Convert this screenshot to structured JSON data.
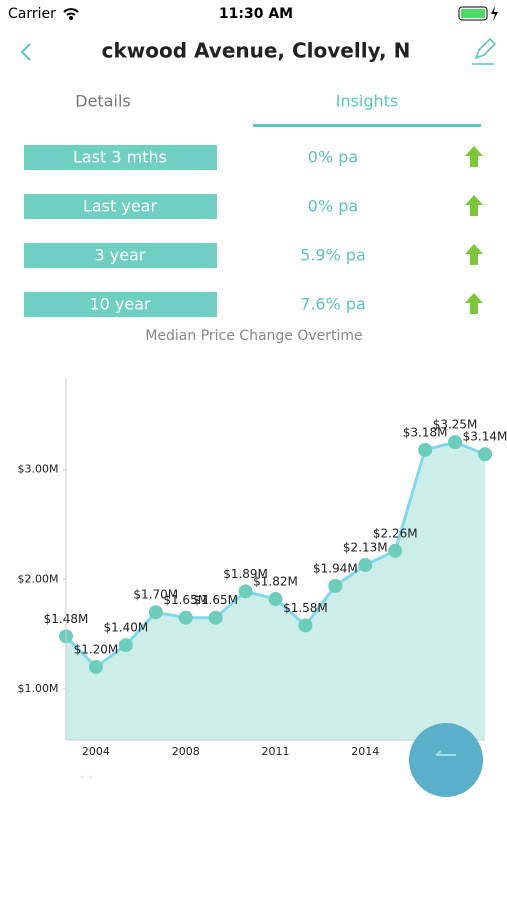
{
  "status_bar": {
    "carrier": "Carrier",
    "time": "11:30 AM"
  },
  "header": {
    "title": "ckwood Avenue, Clovelly, N"
  },
  "tabs": [
    "Details",
    "Insights"
  ],
  "stats": {
    "rows": [
      {
        "period": "Last 3 mths",
        "change": "0% pa"
      },
      {
        "period": "Last year",
        "change": "0% pa"
      },
      {
        "period": "3 year",
        "change": "5.9% pa"
      },
      {
        "period": "10 year",
        "change": "7.6% pa"
      }
    ]
  },
  "chart_data": {
    "type": "line",
    "title": "Median Price Change Overtime",
    "categories": [
      null,
      "2004",
      null,
      null,
      "2008",
      null,
      null,
      "2011",
      null,
      null,
      "2014",
      null,
      null,
      null,
      null
    ],
    "values": [
      1480000,
      1200000,
      1400000,
      1700000,
      1650000,
      1650000,
      1890000,
      1820000,
      1580000,
      1940000,
      2130000,
      2260000,
      3180000,
      3250000,
      3140000
    ],
    "value_labels": [
      "$1.48M",
      "$1.20M",
      "$1.40M",
      "$1.70M",
      "$1.65M",
      "$1.65M",
      "$1.89M",
      "$1.82M",
      "$1.58M",
      "$1.94M",
      "$2.13M",
      "$2.26M",
      "$3.18M",
      "$3.25M",
      "$3.14M"
    ],
    "color": "#7fd8ee",
    "ylim": [
      535000,
      3835000
    ],
    "yticks": [
      {
        "value": 1000000,
        "label": "$1.00M"
      },
      {
        "value": 2000000,
        "label": "$2.00M"
      },
      {
        "value": 3000000,
        "label": "$3.00M"
      }
    ],
    "grid": false
  }
}
